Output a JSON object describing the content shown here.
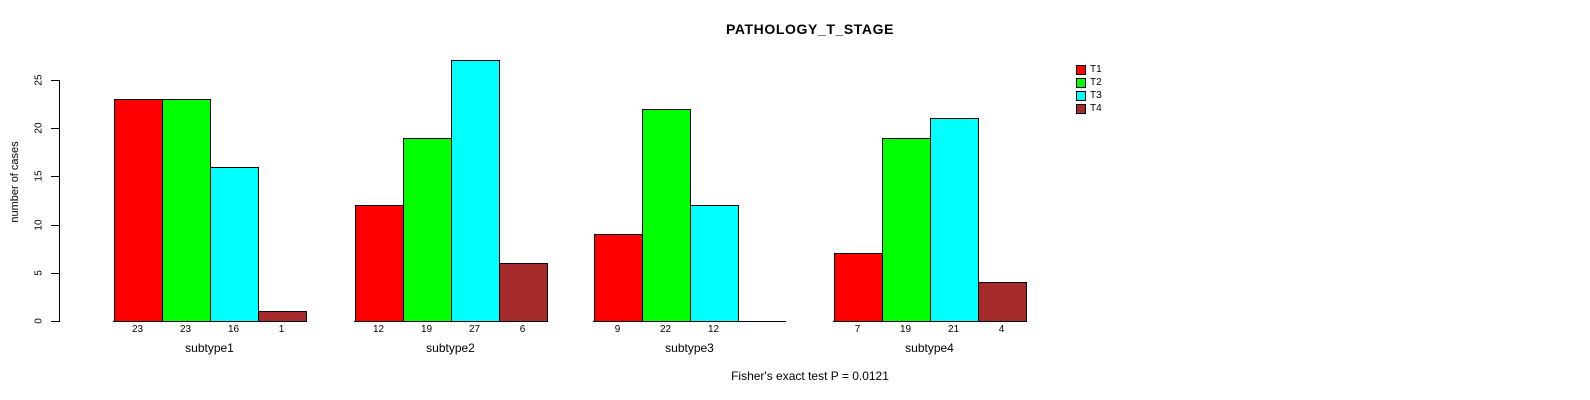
{
  "title": "PATHOLOGY_T_STAGE",
  "footer": "Fisher's exact test P = 0.0121",
  "y_axis": {
    "label": "number of cases",
    "ticks": [
      "0",
      "5",
      "10",
      "15",
      "20",
      "25"
    ]
  },
  "chart_data": {
    "type": "bar",
    "grouped": true,
    "title": "PATHOLOGY_T_STAGE",
    "xlabel": "",
    "ylabel": "number of cases",
    "ylim": [
      0,
      25
    ],
    "grid": false,
    "legend_position": "top-right",
    "categories": [
      "subtype1",
      "subtype2",
      "subtype3",
      "subtype4"
    ],
    "series": [
      {
        "name": "T1",
        "color": "#FF0000",
        "values": [
          23,
          12,
          9,
          7
        ]
      },
      {
        "name": "T2",
        "color": "#00FF00",
        "values": [
          23,
          19,
          22,
          19
        ]
      },
      {
        "name": "T3",
        "color": "#00FFFF",
        "values": [
          16,
          27,
          12,
          21
        ]
      },
      {
        "name": "T4",
        "color": "#A52A2A",
        "values": [
          1,
          6,
          0,
          4
        ]
      }
    ],
    "bar_value_labels": true,
    "zero_value_bars_hidden": true,
    "annotation": "Fisher's exact test P = 0.0121"
  }
}
